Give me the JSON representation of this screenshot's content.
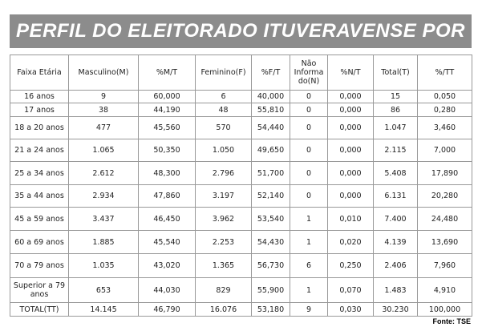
{
  "header": {
    "title": "PERFIL DO ELEITORADO ITUVERAVENSE POR FAIXA ETÁRIA"
  },
  "table": {
    "columns": [
      "Faixa Etária",
      "Masculino(M)",
      "%M/T",
      "Feminino(F)",
      "%F/T",
      "Não Informa do(N)",
      "%N/T",
      "Total(T)",
      "%/TT"
    ],
    "rows": [
      [
        "16 anos",
        "9",
        "60,000",
        "6",
        "40,000",
        "0",
        "0,000",
        "15",
        "0,050"
      ],
      [
        "17 anos",
        "38",
        "44,190",
        "48",
        "55,810",
        "0",
        "0,000",
        "86",
        "0,280"
      ],
      [
        "18 a 20 anos",
        "477",
        "45,560",
        "570",
        "54,440",
        "0",
        "0,000",
        "1.047",
        "3,460"
      ],
      [
        "21 a 24 anos",
        "1.065",
        "50,350",
        "1.050",
        "49,650",
        "0",
        "0,000",
        "2.115",
        "7,000"
      ],
      [
        "25 a 34 anos",
        "2.612",
        "48,300",
        "2.796",
        "51,700",
        "0",
        "0,000",
        "5.408",
        "17,890"
      ],
      [
        "35 a 44 anos",
        "2.934",
        "47,860",
        "3.197",
        "52,140",
        "0",
        "0,000",
        "6.131",
        "20,280"
      ],
      [
        "45 a 59 anos",
        "3.437",
        "46,450",
        "3.962",
        "53,540",
        "1",
        "0,010",
        "7.400",
        "24,480"
      ],
      [
        "60 a 69 anos",
        "1.885",
        "45,540",
        "2.253",
        "54,430",
        "1",
        "0,020",
        "4.139",
        "13,690"
      ],
      [
        "70 a 79 anos",
        "1.035",
        "43,020",
        "1.365",
        "56,730",
        "6",
        "0,250",
        "2.406",
        "7,960"
      ],
      [
        "Superior a 79 anos",
        "653",
        "44,030",
        "829",
        "55,900",
        "1",
        "0,070",
        "1.483",
        "4,910"
      ],
      [
        "TOTAL(TT)",
        "14.145",
        "46,790",
        "16.076",
        "53,180",
        "9",
        "0,030",
        "30.230",
        "100,000"
      ]
    ]
  },
  "footer": {
    "source": "Fonte: TSE"
  }
}
